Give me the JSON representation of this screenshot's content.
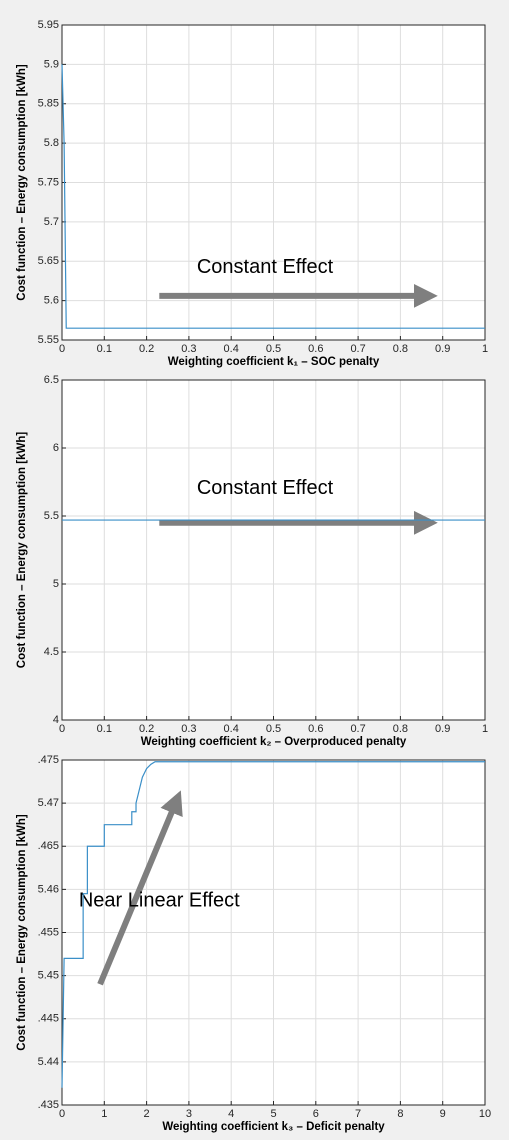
{
  "chart_data": [
    {
      "type": "line",
      "xlabel": "Weighting coefficient k₁ – SOC penalty",
      "ylabel": "Cost function – Energy consumption [kWh]",
      "annotation": "Constant Effect",
      "x": [
        0,
        0.005,
        0.01,
        1
      ],
      "values": [
        5.9,
        5.8,
        5.565,
        5.565
      ],
      "color": "#3a8fc8",
      "xlim": [
        0,
        1
      ],
      "xticks": [
        0,
        0.1,
        0.2,
        0.3,
        0.4,
        0.5,
        0.6,
        0.7,
        0.8,
        0.9,
        1
      ],
      "ylim": [
        5.55,
        5.95
      ],
      "yticks": [
        5.55,
        5.6,
        5.65,
        5.7,
        5.75,
        5.8,
        5.85,
        5.9,
        5.95
      ],
      "grid": true
    },
    {
      "type": "line",
      "xlabel": "Weighting coefficient k₂ –  Overproduced penalty",
      "ylabel": "Cost function – Energy consumption [kWh]",
      "annotation": "Constant Effect",
      "x": [
        0,
        1
      ],
      "values": [
        5.47,
        5.47
      ],
      "color": "#3a8fc8",
      "xlim": [
        0,
        1
      ],
      "xticks": [
        0,
        0.1,
        0.2,
        0.3,
        0.4,
        0.5,
        0.6,
        0.7,
        0.8,
        0.9,
        1
      ],
      "ylim": [
        4,
        6.5
      ],
      "yticks": [
        4,
        4.5,
        5,
        5.5,
        6,
        6.5
      ],
      "grid": true
    },
    {
      "type": "line",
      "xlabel": "Weighting coefficient k₃ –  Deficit penalty",
      "ylabel": "Cost function – Energy consumption [kWh]",
      "annotation": "Near Linear Effect",
      "x": [
        0,
        0.05,
        0.5,
        0.5,
        0.6,
        0.6,
        1.0,
        1.0,
        1.65,
        1.65,
        1.75,
        1.75,
        1.8,
        1.9,
        2.0,
        2.1,
        2.2,
        10
      ],
      "values": [
        5.437,
        5.452,
        5.452,
        5.4595,
        5.4595,
        5.465,
        5.465,
        5.4675,
        5.4675,
        5.469,
        5.469,
        5.47,
        5.471,
        5.473,
        5.474,
        5.4745,
        5.4748,
        5.4748
      ],
      "color": "#3a8fc8",
      "xlim": [
        0,
        10
      ],
      "xticks": [
        0,
        1,
        2,
        3,
        4,
        5,
        6,
        7,
        8,
        9,
        10
      ],
      "ylim": [
        5.435,
        5.475
      ],
      "yticks": [
        {
          "value": 5.435,
          "label": ".435"
        },
        5.44,
        {
          "value": 5.445,
          "label": ".445"
        },
        5.45,
        {
          "value": 5.455,
          "label": ".455"
        },
        5.46,
        {
          "value": 5.465,
          "label": ".465"
        },
        5.47,
        {
          "value": 5.475,
          "label": ".475"
        }
      ],
      "grid": true
    }
  ]
}
